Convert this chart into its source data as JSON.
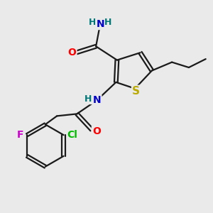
{
  "bg_color": "#eaeaea",
  "bond_color": "#1a1a1a",
  "bond_width": 1.6,
  "atom_colors": {
    "O": "#ff0000",
    "N": "#0000cc",
    "S": "#bbaa00",
    "Cl": "#00bb00",
    "F": "#cc00cc",
    "H": "#007777",
    "C": "#1a1a1a"
  },
  "font_size": 10,
  "fig_size": [
    3.0,
    3.0
  ],
  "dpi": 100
}
